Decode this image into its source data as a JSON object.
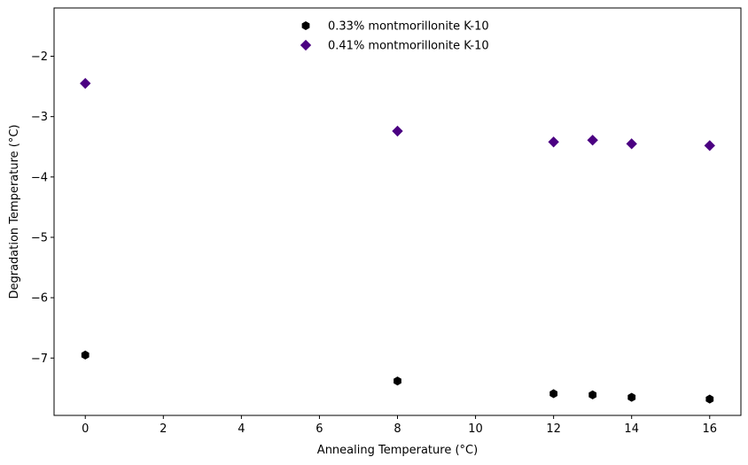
{
  "chart_data": {
    "type": "scatter",
    "title": "",
    "xlabel": "Annealing Temperature (°C)",
    "ylabel": "Degradation Temperature (°C)",
    "xlim": [
      -0.8,
      16.8
    ],
    "ylim": [
      -7.95,
      -1.2
    ],
    "xticks": [
      0,
      2,
      4,
      6,
      8,
      10,
      12,
      14,
      16
    ],
    "yticks": [
      -7,
      -6,
      -5,
      -4,
      -3,
      -2
    ],
    "grid": false,
    "legend_position": "upper-center",
    "series": [
      {
        "name": "0.33% montmorillonite K-10",
        "marker": "hexagon",
        "color": "#000000",
        "x": [
          0,
          8,
          12,
          13,
          14,
          16
        ],
        "y": [
          -6.95,
          -7.38,
          -7.59,
          -7.61,
          -7.65,
          -7.68
        ]
      },
      {
        "name": "0.41% montmorillonite K-10",
        "marker": "diamond",
        "color": "#4b0082",
        "x": [
          0,
          8,
          12,
          13,
          14,
          16
        ],
        "y": [
          -2.45,
          -3.24,
          -3.42,
          -3.39,
          -3.45,
          -3.48
        ]
      }
    ]
  }
}
